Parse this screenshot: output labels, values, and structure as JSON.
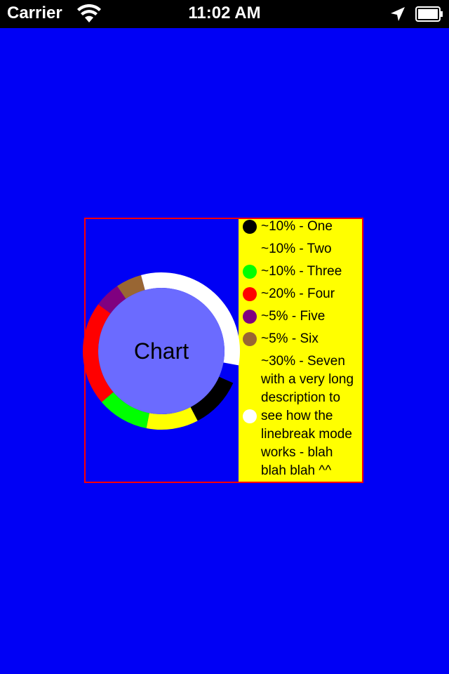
{
  "status_bar": {
    "carrier": "Carrier",
    "time": "11:02 AM",
    "icons": [
      "wifi-icon",
      "location-arrow-icon",
      "battery-icon"
    ]
  },
  "colors": {
    "background": "#0000f5",
    "frame_border": "#ff0000",
    "legend_background": "#ffff00",
    "center_circle": "#6b6bff"
  },
  "chart_data": {
    "type": "pie",
    "style": "donut",
    "center_label": "Chart",
    "slices": [
      {
        "label": "~10% - One",
        "value": 10,
        "color": "#000000"
      },
      {
        "label": "~10% - Two",
        "value": 10,
        "color": "#ffff00"
      },
      {
        "label": "~10% - Three",
        "value": 10,
        "color": "#00ff00"
      },
      {
        "label": "~20% - Four",
        "value": 20,
        "color": "#ff0000"
      },
      {
        "label": "~5% - Five",
        "value": 5,
        "color": "#800080"
      },
      {
        "label": "~5% - Six",
        "value": 5,
        "color": "#996633"
      },
      {
        "label": "~30% - Seven with a very long description to see how the linebreak mode works - blah blah blah ^^",
        "value": 30,
        "color": "#ffffff"
      }
    ],
    "legend_position": "right"
  }
}
